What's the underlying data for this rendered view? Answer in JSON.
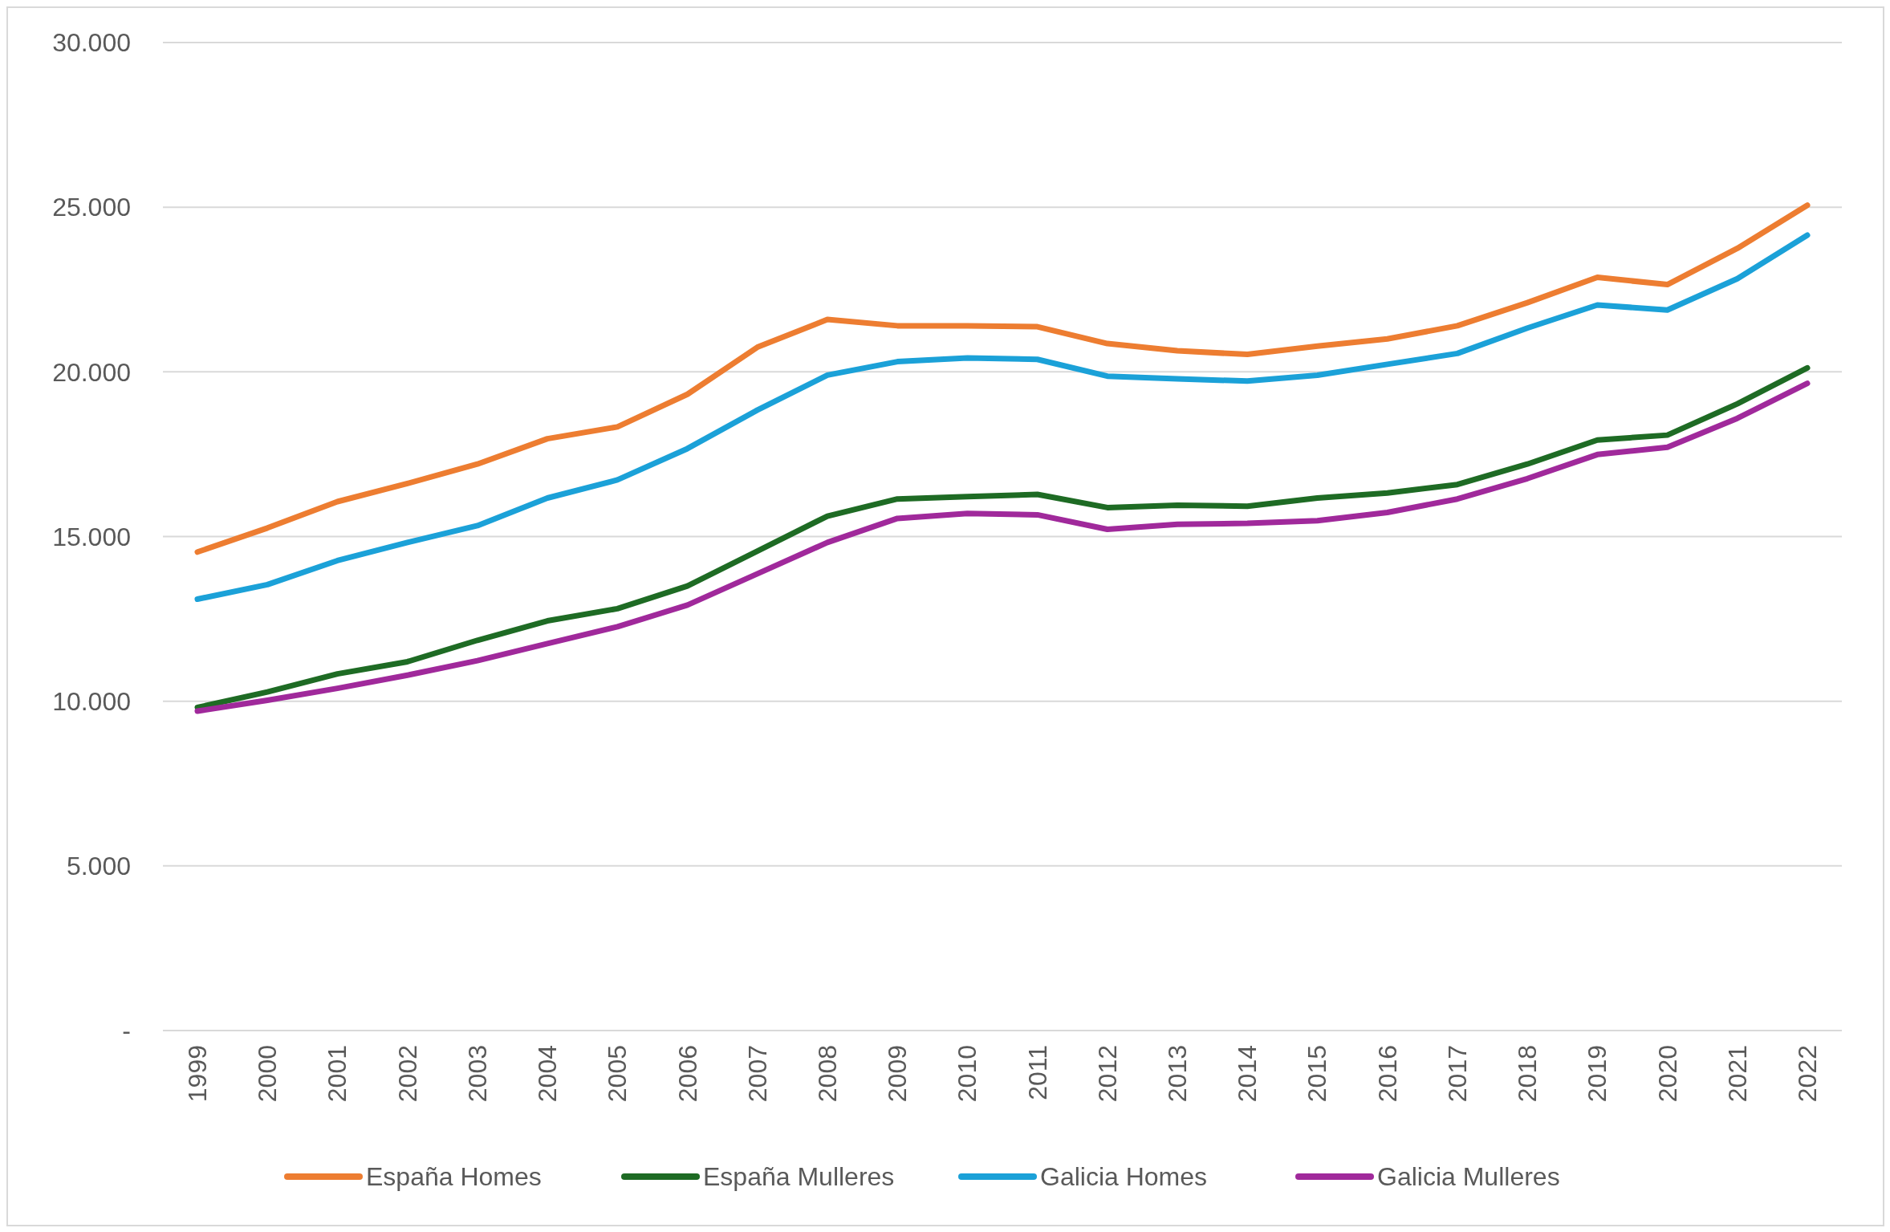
{
  "chart_data": {
    "type": "line",
    "categories": [
      "1999",
      "2000",
      "2001",
      "2002",
      "2003",
      "2004",
      "2005",
      "2006",
      "2007",
      "2008",
      "2009",
      "2010",
      "2011",
      "2012",
      "2013",
      "2014",
      "2015",
      "2016",
      "2017",
      "2018",
      "2019",
      "2020",
      "2021",
      "2022"
    ],
    "series": [
      {
        "name": "España Homes",
        "color": "#ed7d31",
        "values": [
          14530,
          15260,
          16060,
          16610,
          17200,
          17970,
          18330,
          19320,
          20750,
          21590,
          21400,
          21400,
          21370,
          20860,
          20640,
          20530,
          20780,
          21000,
          21400,
          22100,
          22870,
          22650,
          23750,
          25060
        ]
      },
      {
        "name": "España Mulleres",
        "color": "#1e6b24",
        "values": [
          9810,
          10280,
          10830,
          11200,
          11850,
          12440,
          12810,
          13500,
          14560,
          15620,
          16140,
          16210,
          16280,
          15880,
          15950,
          15920,
          16170,
          16320,
          16580,
          17200,
          17930,
          18080,
          19030,
          20120
        ]
      },
      {
        "name": "Galicia Homes",
        "color": "#1ba1d8",
        "values": [
          13100,
          13540,
          14270,
          14820,
          15330,
          16170,
          16720,
          17670,
          18840,
          19900,
          20310,
          20420,
          20380,
          19870,
          19790,
          19720,
          19900,
          20230,
          20560,
          21330,
          22030,
          21880,
          22830,
          24150
        ]
      },
      {
        "name": "Galicia Mulleres",
        "color": "#a0299b",
        "values": [
          9700,
          10030,
          10390,
          10790,
          11230,
          11750,
          12260,
          12920,
          13870,
          14820,
          15550,
          15700,
          15660,
          15220,
          15370,
          15400,
          15480,
          15730,
          16140,
          16760,
          17490,
          17710,
          18590,
          19650
        ]
      }
    ],
    "ylim": [
      0,
      30000
    ],
    "yticks": [
      {
        "value": 0,
        "label": "-"
      },
      {
        "value": 5000,
        "label": "5.000"
      },
      {
        "value": 10000,
        "label": "10.000"
      },
      {
        "value": 15000,
        "label": "15.000"
      },
      {
        "value": 20000,
        "label": "20.000"
      },
      {
        "value": 25000,
        "label": "25.000"
      },
      {
        "value": 30000,
        "label": "30.000"
      }
    ],
    "grid": "y",
    "legend": "bottom",
    "marker": "none",
    "line_style": "solid"
  }
}
